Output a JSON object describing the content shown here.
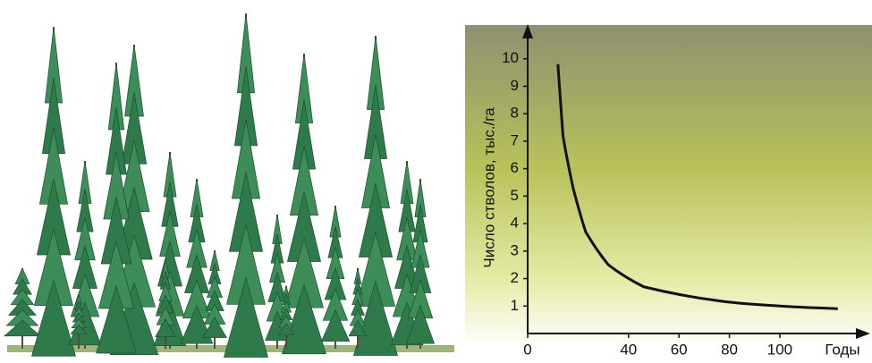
{
  "chart_data": {
    "type": "line",
    "ylabel": "Число стволов, тыс./га",
    "xlabel": "Годы",
    "x": [
      12,
      14,
      18,
      23,
      32,
      46,
      75,
      100,
      123
    ],
    "values": [
      9.8,
      7.2,
      5.3,
      3.7,
      2.5,
      1.7,
      1.2,
      1.0,
      0.9
    ],
    "color": "#111111",
    "xlim": [
      0,
      133
    ],
    "ylim": [
      0,
      11
    ],
    "xticks": [
      0,
      40,
      60,
      80,
      100
    ],
    "yticks": [
      1,
      2,
      3,
      4,
      5,
      6,
      7,
      8,
      9,
      10
    ]
  }
}
